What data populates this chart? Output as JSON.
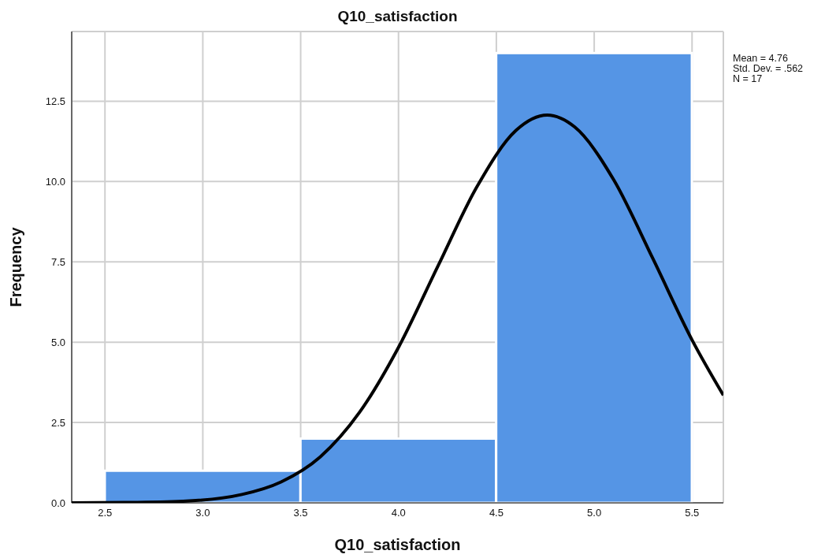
{
  "chart_data": {
    "type": "histogram",
    "title": "Q10_satisfaction",
    "xlabel": "Q10_satisfaction",
    "ylabel": "Frequency",
    "bins": [
      2.5,
      3.5,
      4.5,
      5.5
    ],
    "values": [
      1,
      2,
      14
    ],
    "color": "#5595e5",
    "series": [
      {
        "type": "line",
        "color": "#000000",
        "x": [
          2.33,
          2.6,
          2.9,
          3.2,
          3.4,
          3.6,
          3.8,
          4.0,
          4.2,
          4.4,
          4.6,
          4.76,
          4.9,
          5.1,
          5.3,
          5.5,
          5.66
        ],
        "values": [
          0.0,
          0.01,
          0.05,
          0.26,
          0.65,
          1.43,
          2.81,
          4.84,
          7.35,
          9.83,
          11.59,
          12.07,
          11.7,
          10.05,
          7.6,
          5.07,
          3.35
        ]
      }
    ],
    "xlim": [
      2.33,
      5.66
    ],
    "xticks": [
      {
        "value": 2.5,
        "label": "2.5"
      },
      {
        "value": 3,
        "label": "3.0"
      },
      {
        "value": 3.5,
        "label": "3.5"
      },
      {
        "value": 4,
        "label": "4.0"
      },
      {
        "value": 4.5,
        "label": "4.5"
      },
      {
        "value": 5,
        "label": "5.0"
      },
      {
        "value": 5.5,
        "label": "5.5"
      }
    ],
    "ylim": [
      0,
      14.67
    ],
    "yticks": [
      {
        "value": 0,
        "label": "0.0"
      },
      {
        "value": 2.5,
        "label": "2.5"
      },
      {
        "value": 5,
        "label": "5.0"
      },
      {
        "value": 7.5,
        "label": "7.5"
      },
      {
        "value": 10,
        "label": "10.0"
      },
      {
        "value": 12.5,
        "label": "12.5"
      }
    ],
    "grid": true,
    "legend": false,
    "marker": "none",
    "line_style": "solid",
    "annotations": [
      "Mean = 4.76",
      "Std. Dev. = .562",
      "N = 17"
    ]
  }
}
